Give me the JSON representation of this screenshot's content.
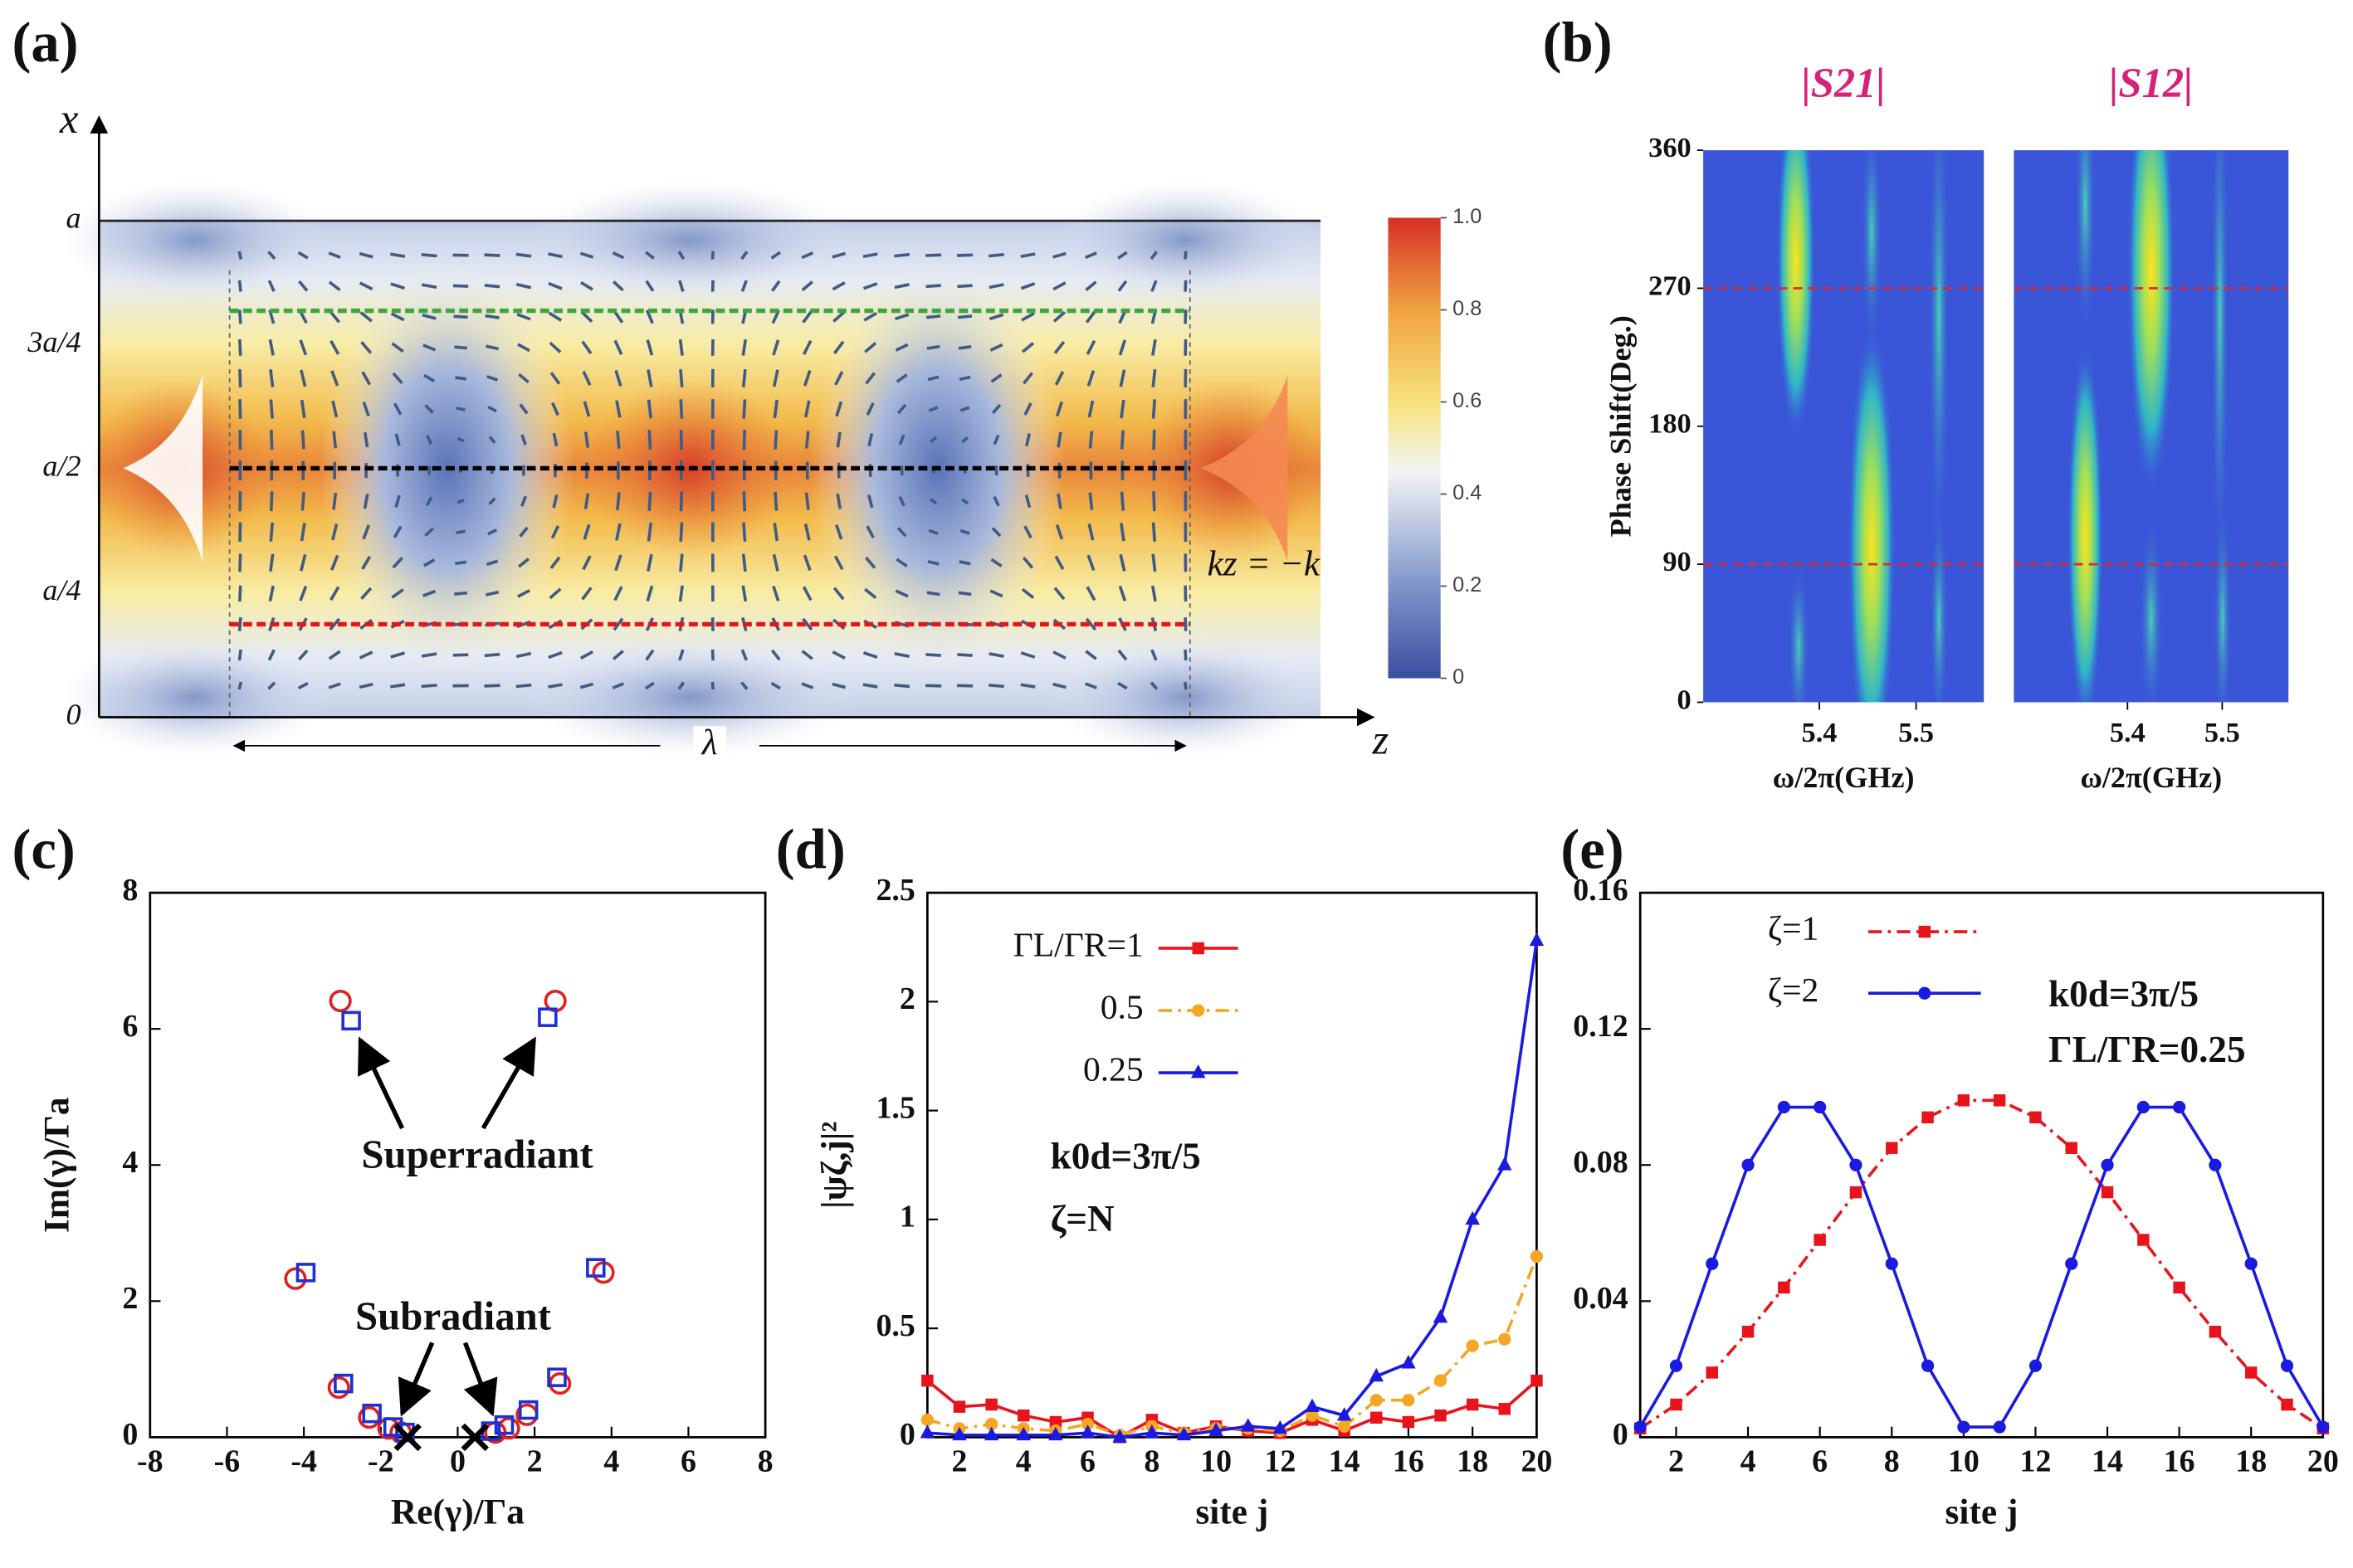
{
  "chart_data": [
    {
      "type": "field",
      "panel_label": "(a)",
      "ylabel": "x",
      "xlabel": "z",
      "ytick_labels": [
        "a",
        "3a/4",
        "a/2",
        "a/4",
        "0"
      ],
      "annotations": [
        "λ",
        "kz = −k"
      ],
      "clim": [
        0,
        1
      ],
      "cticks": [
        0,
        0.2,
        0.4,
        0.6,
        0.8,
        {
          "value": 1,
          "label": "1.0"
        }
      ]
    },
    {
      "type": "heatmap",
      "panel_label": "(b)",
      "title": "|S21|",
      "ylabel": "Phase Shift(Deg.)",
      "xlabel": "ω/2π(GHz)",
      "xlim": [
        5.28,
        5.57
      ],
      "xticks": [
        5.4,
        5.5
      ],
      "ylim": [
        0,
        360
      ],
      "yticks": [
        0,
        90,
        180,
        270,
        360
      ]
    },
    {
      "type": "heatmap",
      "title": "|S12|",
      "xlabel": "ω/2π(GHz)",
      "xlim": [
        5.28,
        5.57
      ],
      "xticks": [
        5.4,
        5.5
      ],
      "ylim": [
        0,
        360
      ]
    },
    {
      "type": "scatter",
      "panel_label": "(c)",
      "xlabel": "Re(γ)/Γa",
      "ylabel": "Im(γ)/Γa",
      "xlim": [
        -8,
        8
      ],
      "xticks": [
        -8,
        -6,
        -4,
        -2,
        0,
        2,
        4,
        6,
        8
      ],
      "ylim": [
        0,
        8
      ],
      "yticks": [
        0,
        2,
        4,
        6,
        8
      ],
      "annotations": [
        "Superradiant",
        "Subradiant"
      ],
      "series": [
        {
          "color": "#e02020",
          "marker": "circle",
          "x": [
            -3.05,
            2.54,
            -4.22,
            3.79,
            -3.09,
            2.66,
            -2.3,
            1.8,
            -1.8,
            1.33,
            -1.48,
            0.98
          ],
          "values": [
            6.41,
            6.41,
            2.33,
            2.42,
            0.73,
            0.79,
            0.29,
            0.33,
            0.13,
            0.13,
            0.07,
            0.07
          ]
        },
        {
          "color": "#2030d0",
          "marker": "square",
          "x": [
            -2.77,
            2.34,
            -3.95,
            3.59,
            -2.97,
            2.58,
            -2.23,
            1.84,
            -1.68,
            1.21,
            -1.37,
            0.86
          ],
          "values": [
            6.12,
            6.17,
            2.42,
            2.49,
            0.79,
            0.88,
            0.35,
            0.4,
            0.15,
            0.18,
            0.07,
            0.09
          ]
        },
        {
          "color": "#000000",
          "marker": "x",
          "x": [
            -1.3,
            0.45
          ],
          "values": [
            0,
            0
          ]
        }
      ]
    },
    {
      "type": "line",
      "panel_label": "(d)",
      "xlabel": "site j",
      "ylabel": "|ψζ,j|²",
      "x": [
        1,
        2,
        3,
        4,
        5,
        6,
        7,
        8,
        9,
        10,
        11,
        12,
        13,
        14,
        15,
        16,
        17,
        18,
        19,
        20
      ],
      "xlim": [
        1,
        20
      ],
      "xticks": [
        2,
        4,
        6,
        8,
        10,
        12,
        14,
        16,
        18,
        20
      ],
      "ylim": [
        0,
        2.5
      ],
      "yticks": [
        0,
        0.5,
        1,
        1.5,
        2,
        2.5
      ],
      "annotations": [
        "k0d=3π/5",
        "ζ=N"
      ],
      "series": [
        {
          "name": "ΓL/ΓR=1",
          "color": "#e8141c",
          "marker": "square",
          "dash": "solid",
          "values": [
            0.26,
            0.14,
            0.15,
            0.1,
            0.07,
            0.09,
            0.0,
            0.08,
            0.02,
            0.05,
            0.03,
            0.02,
            0.08,
            0.03,
            0.09,
            0.07,
            0.1,
            0.15,
            0.13,
            0.26
          ]
        },
        {
          "name": "0.5",
          "color": "#f5a623",
          "marker": "circle",
          "dash": "dashdot",
          "values": [
            0.08,
            0.04,
            0.06,
            0.04,
            0.03,
            0.06,
            0.01,
            0.05,
            0.02,
            0.04,
            0.04,
            0.03,
            0.1,
            0.05,
            0.17,
            0.17,
            0.26,
            0.42,
            0.45,
            0.83
          ]
        },
        {
          "name": "0.25",
          "color": "#1a1ae0",
          "marker": "triangle",
          "dash": "solid",
          "values": [
            0.02,
            0.01,
            0.01,
            0.01,
            0.01,
            0.02,
            0.0,
            0.02,
            0.01,
            0.03,
            0.05,
            0.04,
            0.14,
            0.1,
            0.28,
            0.34,
            0.55,
            1.0,
            1.25,
            2.28
          ]
        }
      ]
    },
    {
      "type": "line",
      "panel_label": "(e)",
      "xlabel": "site j",
      "x": [
        1,
        2,
        3,
        4,
        5,
        6,
        7,
        8,
        9,
        10,
        11,
        12,
        13,
        14,
        15,
        16,
        17,
        18,
        19,
        20
      ],
      "xlim": [
        1,
        20
      ],
      "xticks": [
        2,
        4,
        6,
        8,
        10,
        12,
        14,
        16,
        18,
        20
      ],
      "ylim": [
        0,
        0.16
      ],
      "yticks": [
        0,
        0.04,
        0.08,
        0.12,
        0.16
      ],
      "annotations": [
        "k0d=3π/5",
        "ΓL/ΓR=0.25"
      ],
      "series": [
        {
          "name": "ζ=1",
          "color": "#e8141c",
          "marker": "square",
          "dash": "dashdot",
          "values": [
            0.0026,
            0.0096,
            0.019,
            0.031,
            0.044,
            0.058,
            0.072,
            0.085,
            0.094,
            0.099,
            0.099,
            0.094,
            0.085,
            0.072,
            0.058,
            0.044,
            0.031,
            0.019,
            0.0096,
            0.0026
          ]
        },
        {
          "name": "ζ=2",
          "color": "#1a1ae0",
          "marker": "circle",
          "dash": "solid",
          "values": [
            0.003,
            0.021,
            0.051,
            0.08,
            0.097,
            0.097,
            0.08,
            0.051,
            0.021,
            0.003,
            0.003,
            0.021,
            0.051,
            0.08,
            0.097,
            0.097,
            0.08,
            0.051,
            0.021,
            0.003
          ]
        }
      ]
    }
  ]
}
